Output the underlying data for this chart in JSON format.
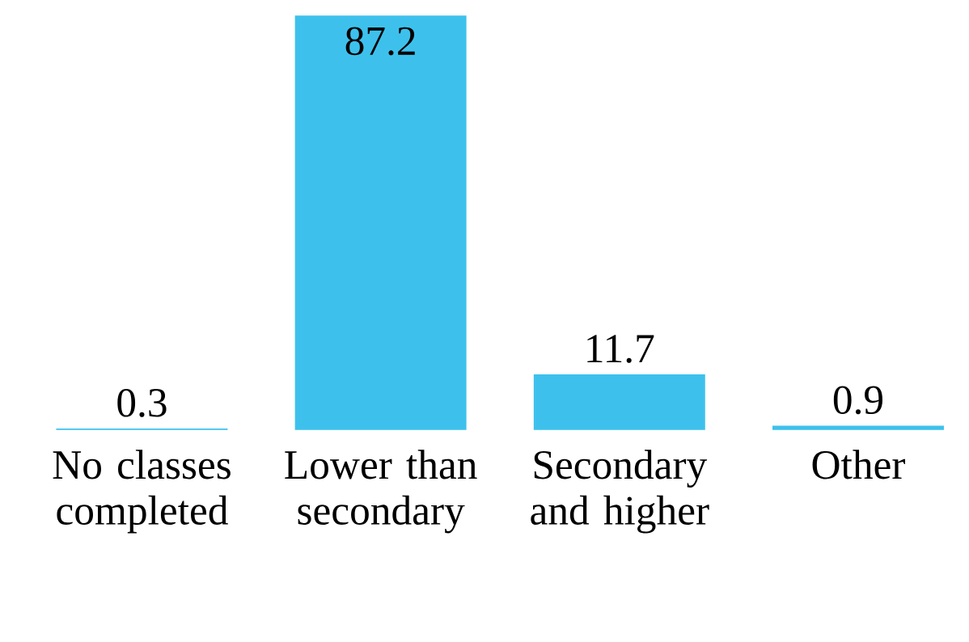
{
  "chart_data": {
    "type": "bar",
    "categories": [
      "No classes completed",
      "Lower than secondary",
      "Secondary and higher",
      "Other"
    ],
    "values": [
      0.3,
      87.2,
      11.7,
      0.9
    ],
    "color": "#3dc1ec",
    "data_labels": true
  }
}
